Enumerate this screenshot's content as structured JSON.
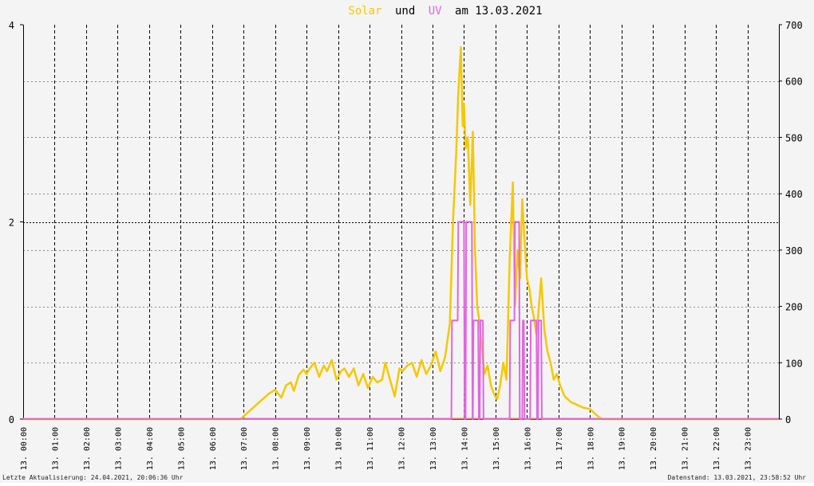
{
  "title": {
    "solar_word": "Solar",
    "and_word": "und",
    "uv_word": "UV",
    "date_text": "am 13.03.2021"
  },
  "footer": {
    "left": "Letzte Aktualisierung: 24.04.2021, 20:06:36 Uhr",
    "right": "Datenstand: 13.03.2021, 23:58:52 Uhr"
  },
  "colors": {
    "solar": "#f5c800",
    "uv": "#e066e0",
    "baseline": "#f08070",
    "grid": "#000000",
    "background": "#f4f4f4"
  },
  "chart_data": {
    "type": "line",
    "x_unit": "hour",
    "xlim": [
      0,
      24
    ],
    "x_ticks": [
      {
        "x": 0,
        "label": "13. 00:00"
      },
      {
        "x": 1,
        "label": "13. 01:00"
      },
      {
        "x": 2,
        "label": "13. 02:00"
      },
      {
        "x": 3,
        "label": "13. 03:00"
      },
      {
        "x": 4,
        "label": "13. 04:00"
      },
      {
        "x": 5,
        "label": "13. 05:00"
      },
      {
        "x": 6,
        "label": "13. 06:00"
      },
      {
        "x": 7,
        "label": "13. 07:00"
      },
      {
        "x": 8,
        "label": "13. 08:00"
      },
      {
        "x": 9,
        "label": "13. 09:00"
      },
      {
        "x": 10,
        "label": "13. 10:00"
      },
      {
        "x": 11,
        "label": "13. 11:00"
      },
      {
        "x": 12,
        "label": "13. 12:00"
      },
      {
        "x": 13,
        "label": "13. 13:00"
      },
      {
        "x": 14,
        "label": "13. 14:00"
      },
      {
        "x": 15,
        "label": "13. 15:00"
      },
      {
        "x": 16,
        "label": "13. 16:00"
      },
      {
        "x": 17,
        "label": "13. 17:00"
      },
      {
        "x": 18,
        "label": "13. 18:00"
      },
      {
        "x": 19,
        "label": "13. 19:00"
      },
      {
        "x": 20,
        "label": "13. 20:00"
      },
      {
        "x": 21,
        "label": "13. 21:00"
      },
      {
        "x": 22,
        "label": "13. 22:00"
      },
      {
        "x": 23,
        "label": "13. 23:00"
      }
    ],
    "y_left": {
      "range": [
        0,
        4
      ],
      "tick_labels": [
        "0",
        "2",
        "4"
      ],
      "tick_values": [
        0,
        2,
        4
      ]
    },
    "y_right": {
      "range": [
        0,
        700
      ],
      "tick_labels": [
        "0",
        "100",
        "200",
        "300",
        "400",
        "500",
        "600",
        "700"
      ],
      "tick_values": [
        0,
        100,
        200,
        300,
        400,
        500,
        600,
        700
      ]
    },
    "grid": true,
    "series": [
      {
        "name": "Solar",
        "axis": "right",
        "color": "#f5c800",
        "x": [
          0,
          6.9,
          7.0,
          7.2,
          7.4,
          7.6,
          7.8,
          8.0,
          8.2,
          8.35,
          8.5,
          8.6,
          8.75,
          8.9,
          9.0,
          9.1,
          9.25,
          9.4,
          9.55,
          9.65,
          9.8,
          9.95,
          10.1,
          10.2,
          10.35,
          10.5,
          10.65,
          10.8,
          10.95,
          11.1,
          11.25,
          11.4,
          11.5,
          11.65,
          11.8,
          11.95,
          12.05,
          12.2,
          12.35,
          12.5,
          12.65,
          12.8,
          12.95,
          13.1,
          13.25,
          13.4,
          13.55,
          13.65,
          13.75,
          13.82,
          13.9,
          13.96,
          14.0,
          14.05,
          14.12,
          14.2,
          14.28,
          14.35,
          14.42,
          14.5,
          14.58,
          14.65,
          14.75,
          14.85,
          14.95,
          15.05,
          15.15,
          15.25,
          15.35,
          15.45,
          15.55,
          15.62,
          15.7,
          15.78,
          15.85,
          15.92,
          16.0,
          16.08,
          16.15,
          16.22,
          16.3,
          16.38,
          16.45,
          16.55,
          16.65,
          16.75,
          16.85,
          16.95,
          17.05,
          17.2,
          17.4,
          17.6,
          17.8,
          18.0,
          18.15,
          18.3,
          18.4,
          24
        ],
        "y": [
          0,
          0,
          5,
          15,
          25,
          35,
          45,
          52,
          38,
          60,
          65,
          50,
          78,
          88,
          80,
          90,
          100,
          75,
          95,
          85,
          105,
          70,
          85,
          90,
          75,
          90,
          60,
          80,
          55,
          75,
          65,
          70,
          100,
          70,
          40,
          90,
          85,
          95,
          100,
          75,
          105,
          80,
          95,
          120,
          85,
          110,
          170,
          350,
          470,
          580,
          660,
          520,
          560,
          480,
          500,
          380,
          510,
          300,
          200,
          170,
          120,
          80,
          95,
          60,
          45,
          35,
          60,
          100,
          70,
          280,
          420,
          200,
          300,
          250,
          390,
          320,
          250,
          230,
          200,
          180,
          150,
          200,
          250,
          160,
          120,
          100,
          70,
          80,
          60,
          40,
          30,
          25,
          20,
          18,
          10,
          3,
          0,
          0
        ]
      },
      {
        "name": "UV",
        "axis": "left",
        "color": "#e066e0",
        "x": [
          0,
          13.6,
          13.62,
          13.8,
          13.82,
          14.0,
          14.02,
          14.05,
          14.07,
          14.25,
          14.27,
          14.28,
          14.3,
          14.45,
          14.47,
          14.5,
          14.52,
          14.6,
          14.62,
          15.45,
          15.47,
          15.6,
          15.62,
          15.75,
          15.77,
          15.85,
          15.87,
          15.9,
          15.92,
          16.1,
          16.12,
          16.3,
          16.32,
          16.35,
          16.37,
          16.45,
          16.47,
          16.75,
          16.77,
          24
        ],
        "y": [
          0,
          0,
          1,
          1,
          2,
          2,
          0,
          0,
          2,
          2,
          0,
          0,
          1,
          1,
          0,
          0,
          1,
          1,
          0,
          0,
          1,
          1,
          2,
          2,
          0,
          0,
          1,
          1,
          0,
          0,
          1,
          1,
          0,
          0,
          1,
          1,
          0,
          0,
          0,
          0
        ]
      }
    ]
  }
}
